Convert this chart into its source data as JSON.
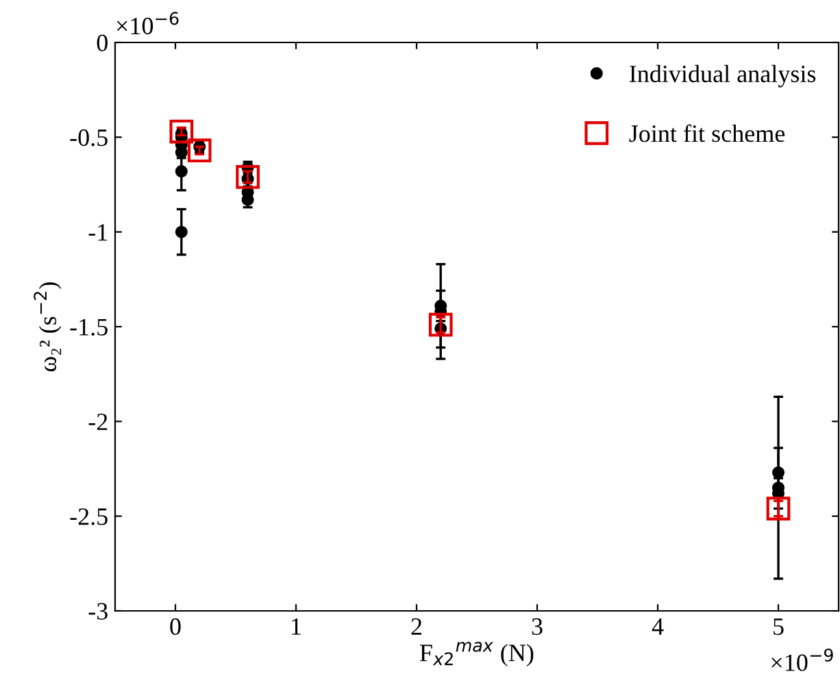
{
  "chart_data": {
    "type": "scatter",
    "xlabel": "F$_{x2}$$^{max}$ (N)",
    "ylabel": "ω₂² (s$^{−2}$)",
    "annotations": [
      "×10$^{−6}$",
      "×10$^{−9}$"
    ],
    "xlim": [
      -0.5,
      5.5
    ],
    "xticks": [
      0,
      1,
      2,
      3,
      4,
      5
    ],
    "ylim": [
      -3,
      0
    ],
    "yticks": [
      {
        "value": -3,
        "label": "-3"
      },
      {
        "value": -2.5,
        "label": "-2.5"
      },
      {
        "value": -2,
        "label": "-2"
      },
      {
        "value": -1.5,
        "label": "-1.5"
      },
      {
        "value": -1,
        "label": "-1"
      },
      {
        "value": -0.5,
        "label": "-0.5"
      },
      0
    ],
    "grid": false,
    "legend": "top right",
    "series": [
      {
        "name": "Individual analysis",
        "color": "#000000",
        "marker": "circle",
        "x": [
          0.05,
          0.05,
          0.05,
          0.05,
          0.05,
          0.05,
          0.2,
          0.6,
          0.6,
          0.6,
          0.6,
          2.2,
          2.2,
          2.2,
          5,
          5,
          5
        ],
        "values": [
          -0.48,
          -0.5,
          -0.54,
          -0.58,
          -0.68,
          -1.0,
          -0.55,
          -0.66,
          -0.72,
          -0.79,
          -0.83,
          -1.39,
          -1.42,
          -1.51,
          -2.27,
          -2.35,
          -2.38
        ],
        "errors": [
          0.03,
          0.03,
          0.03,
          0.03,
          0.1,
          0.12,
          0.03,
          0.03,
          0.04,
          0.05,
          0.04,
          0.08,
          0.25,
          0.1,
          0.13,
          0.48,
          0.08
        ]
      },
      {
        "name": "Joint fit scheme",
        "color": "#e00000",
        "marker": "square",
        "x": [
          0.05,
          0.2,
          0.6,
          2.2,
          5
        ],
        "values": [
          -0.47,
          -0.57,
          -0.71,
          -1.49,
          -2.46
        ],
        "errors": [
          0.02,
          0.02,
          0.03,
          0.04,
          0.04
        ]
      }
    ]
  }
}
